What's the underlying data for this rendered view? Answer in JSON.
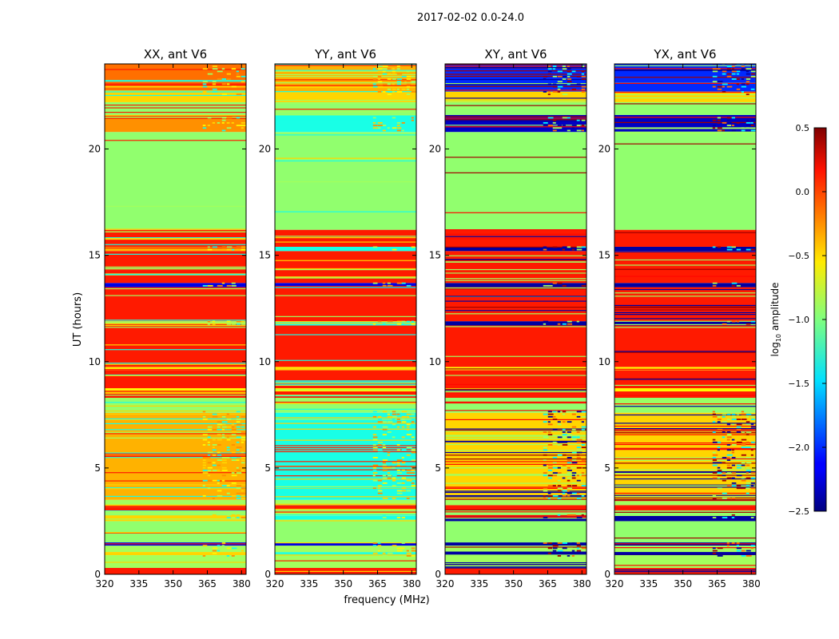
{
  "figure": {
    "suptitle": "2017-02-02 0.0-24.0",
    "ylabel": "UT (hours)",
    "xlabel": "frequency (MHz)"
  },
  "colorbar": {
    "label_prefix": "log",
    "label_sub": "10",
    "label_suffix": " amplitude",
    "ticks": [
      "0.5",
      "0.0",
      "−0.5",
      "−1.0",
      "−1.5",
      "−2.0",
      "−2.5"
    ],
    "range": [
      -2.5,
      0.5
    ],
    "colormap": "jet"
  },
  "chart_data": {
    "type": "heatmap",
    "x_unit": "MHz",
    "xlim": [
      320,
      382
    ],
    "ylim": [
      0,
      24
    ],
    "xticks": [
      320,
      335,
      350,
      365,
      380
    ],
    "yticks": [
      0,
      5,
      10,
      15,
      20
    ],
    "xticklabels": [
      "320",
      "335",
      "350",
      "365",
      "380"
    ],
    "yticklabels": [
      "0",
      "5",
      "10",
      "15",
      "20"
    ],
    "panels": [
      {
        "title": "XX, ant V6",
        "kind": "auto",
        "bands": [
          [
            0.0,
            0.3,
            0.05
          ],
          [
            0.3,
            0.9,
            -0.9
          ],
          [
            0.9,
            1.05,
            -0.5
          ],
          [
            1.05,
            1.35,
            -0.9
          ],
          [
            1.35,
            1.5,
            -2.2
          ],
          [
            1.5,
            2.5,
            -0.95
          ],
          [
            2.5,
            2.75,
            -0.5
          ],
          [
            2.75,
            3.0,
            -0.95
          ],
          [
            3.0,
            3.25,
            0.05
          ],
          [
            3.25,
            3.5,
            -0.9
          ],
          [
            3.5,
            7.6,
            -0.4
          ],
          [
            7.6,
            8.3,
            -0.95
          ],
          [
            8.3,
            8.6,
            0.05
          ],
          [
            8.6,
            8.75,
            -0.6
          ],
          [
            8.75,
            9.6,
            0.05
          ],
          [
            9.6,
            9.75,
            -0.6
          ],
          [
            9.75,
            11.7,
            0.05
          ],
          [
            11.7,
            11.9,
            -0.9
          ],
          [
            11.9,
            13.5,
            0.05
          ],
          [
            13.5,
            13.7,
            -2.2
          ],
          [
            13.7,
            15.2,
            0.05
          ],
          [
            15.2,
            15.4,
            -0.4
          ],
          [
            15.4,
            16.2,
            0.05
          ],
          [
            16.2,
            20.8,
            -0.95
          ],
          [
            20.8,
            21.6,
            -0.3
          ],
          [
            21.6,
            22.2,
            -0.95
          ],
          [
            22.2,
            22.7,
            -0.5
          ],
          [
            22.7,
            24.0,
            -0.2
          ]
        ]
      },
      {
        "title": "YY, ant V6",
        "kind": "auto",
        "bands": [
          [
            0.0,
            0.3,
            0.05
          ],
          [
            0.3,
            0.9,
            -0.9
          ],
          [
            0.9,
            1.05,
            -1.2
          ],
          [
            1.05,
            1.35,
            -0.9
          ],
          [
            1.35,
            1.5,
            -2.2
          ],
          [
            1.5,
            2.5,
            -0.95
          ],
          [
            2.5,
            2.75,
            -1.3
          ],
          [
            2.75,
            3.0,
            -0.95
          ],
          [
            3.0,
            3.25,
            0.05
          ],
          [
            3.25,
            3.5,
            -0.9
          ],
          [
            3.5,
            7.6,
            -1.3
          ],
          [
            7.6,
            8.3,
            -0.95
          ],
          [
            8.3,
            8.6,
            0.05
          ],
          [
            8.6,
            8.75,
            -0.6
          ],
          [
            8.75,
            9.6,
            0.05
          ],
          [
            9.6,
            9.75,
            -0.6
          ],
          [
            9.75,
            11.7,
            0.05
          ],
          [
            11.7,
            11.9,
            -1.3
          ],
          [
            11.9,
            13.5,
            0.05
          ],
          [
            13.5,
            13.7,
            -2.2
          ],
          [
            13.7,
            15.2,
            0.05
          ],
          [
            15.2,
            15.4,
            -1.3
          ],
          [
            15.4,
            16.2,
            0.05
          ],
          [
            16.2,
            20.8,
            -0.95
          ],
          [
            20.8,
            21.6,
            -1.3
          ],
          [
            21.6,
            22.2,
            -0.95
          ],
          [
            22.2,
            22.7,
            -0.5
          ],
          [
            22.7,
            24.0,
            -0.4
          ]
        ]
      },
      {
        "title": "XY, ant V6",
        "kind": "cross",
        "bands": [
          [
            0.0,
            0.3,
            0.05
          ],
          [
            0.3,
            0.9,
            -0.9
          ],
          [
            0.9,
            1.05,
            -2.4
          ],
          [
            1.05,
            1.35,
            -0.9
          ],
          [
            1.35,
            1.5,
            -2.4
          ],
          [
            1.5,
            2.5,
            -0.95
          ],
          [
            2.5,
            2.75,
            -2.4
          ],
          [
            2.75,
            3.0,
            -0.95
          ],
          [
            3.0,
            3.25,
            0.05
          ],
          [
            3.25,
            3.5,
            -0.9
          ],
          [
            3.5,
            7.6,
            -0.5
          ],
          [
            7.6,
            8.3,
            -0.95
          ],
          [
            8.3,
            8.6,
            0.05
          ],
          [
            8.6,
            8.75,
            -0.6
          ],
          [
            8.75,
            9.6,
            0.05
          ],
          [
            9.6,
            9.75,
            -0.6
          ],
          [
            9.75,
            11.7,
            0.05
          ],
          [
            11.7,
            11.9,
            -2.4
          ],
          [
            11.9,
            13.5,
            0.05
          ],
          [
            13.5,
            13.7,
            -2.4
          ],
          [
            13.7,
            15.2,
            0.05
          ],
          [
            15.2,
            15.4,
            -2.4
          ],
          [
            15.4,
            16.2,
            0.05
          ],
          [
            16.2,
            20.8,
            -0.95
          ],
          [
            20.8,
            21.6,
            -2.3
          ],
          [
            21.6,
            22.2,
            -0.95
          ],
          [
            22.2,
            22.7,
            -0.5
          ],
          [
            22.7,
            24.0,
            -2.0
          ]
        ]
      },
      {
        "title": "YX, ant V6",
        "kind": "cross",
        "bands": [
          [
            0.0,
            0.3,
            0.05
          ],
          [
            0.3,
            0.9,
            -0.9
          ],
          [
            0.9,
            1.05,
            -2.4
          ],
          [
            1.05,
            1.35,
            -0.9
          ],
          [
            1.35,
            1.5,
            -2.4
          ],
          [
            1.5,
            2.5,
            -0.95
          ],
          [
            2.5,
            2.75,
            -2.4
          ],
          [
            2.75,
            3.0,
            -0.95
          ],
          [
            3.0,
            3.25,
            0.05
          ],
          [
            3.25,
            3.5,
            -0.9
          ],
          [
            3.5,
            7.6,
            -0.5
          ],
          [
            7.6,
            8.3,
            -0.95
          ],
          [
            8.3,
            8.6,
            0.05
          ],
          [
            8.6,
            8.75,
            -0.6
          ],
          [
            8.75,
            9.6,
            0.05
          ],
          [
            9.6,
            9.75,
            -0.6
          ],
          [
            9.75,
            11.7,
            0.05
          ],
          [
            11.7,
            11.9,
            -2.4
          ],
          [
            11.9,
            13.5,
            0.05
          ],
          [
            13.5,
            13.7,
            -2.4
          ],
          [
            13.7,
            15.2,
            0.05
          ],
          [
            15.2,
            15.4,
            -2.4
          ],
          [
            15.4,
            16.2,
            0.05
          ],
          [
            16.2,
            20.8,
            -0.95
          ],
          [
            20.8,
            21.6,
            -2.3
          ],
          [
            21.6,
            22.2,
            -0.95
          ],
          [
            22.2,
            22.7,
            -0.5
          ],
          [
            22.7,
            24.0,
            -2.0
          ]
        ]
      }
    ]
  }
}
